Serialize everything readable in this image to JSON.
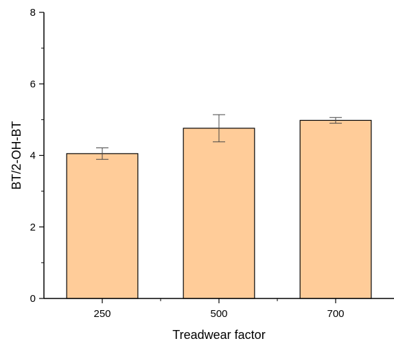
{
  "chart_data": {
    "type": "bar",
    "title": "",
    "xlabel": "Treadwear factor",
    "ylabel": "BT/2-OH-BT",
    "categories": [
      "250",
      "500",
      "700"
    ],
    "values": [
      4.05,
      4.76,
      4.98
    ],
    "errors": [
      0.16,
      0.38,
      0.08
    ],
    "ylim": [
      0,
      8
    ],
    "yticks": [
      0,
      2,
      4,
      6,
      8
    ],
    "grid": false,
    "legend": "none",
    "bar_color": "#ffcc99",
    "bar_edge_color": "#000000"
  }
}
